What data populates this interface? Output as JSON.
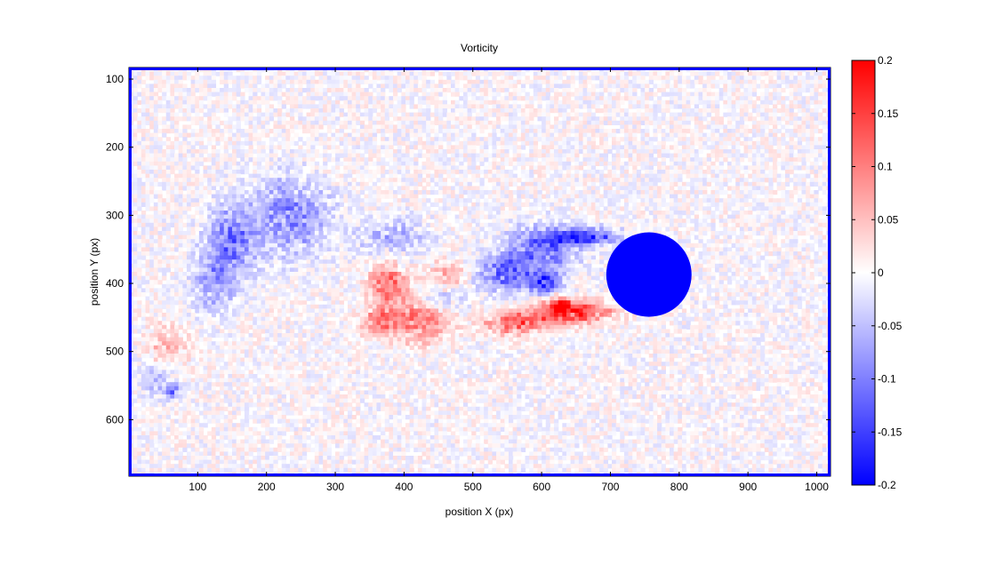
{
  "chart_data": {
    "type": "heatmap",
    "title": "Vorticity",
    "xlabel": "position X (px)",
    "ylabel": "position Y (px)",
    "xlim": [
      0,
      1020
    ],
    "ylim": [
      683,
      83
    ],
    "y_reversed": true,
    "x_ticks": [
      100,
      200,
      300,
      400,
      500,
      600,
      700,
      800,
      900,
      1000
    ],
    "y_ticks": [
      100,
      200,
      300,
      400,
      500,
      600
    ],
    "colorbar": {
      "range": [
        -0.2,
        0.2
      ],
      "ticks": [
        0.2,
        0.15,
        0.1,
        0.05,
        0,
        -0.05,
        -0.1,
        -0.15,
        -0.2
      ],
      "tick_labels": [
        "0.2",
        "0.15",
        "0.1",
        "0.05",
        "0",
        "-0.05",
        "-0.1",
        "-0.15",
        "-0.2"
      ],
      "low_color": "#0000ff",
      "mid_color": "#ffffff",
      "high_color": "#ff0000"
    },
    "field": {
      "grid_step": 6,
      "noise_level": 0.028,
      "features": [
        {
          "cx": 230,
          "cy": 300,
          "rx": 70,
          "ry": 70,
          "value": -0.09
        },
        {
          "cx": 145,
          "cy": 335,
          "rx": 45,
          "ry": 65,
          "value": -0.1
        },
        {
          "cx": 120,
          "cy": 400,
          "rx": 40,
          "ry": 50,
          "value": -0.07
        },
        {
          "cx": 380,
          "cy": 330,
          "rx": 60,
          "ry": 35,
          "value": -0.06
        },
        {
          "cx": 375,
          "cy": 400,
          "rx": 35,
          "ry": 45,
          "value": 0.1
        },
        {
          "cx": 420,
          "cy": 450,
          "rx": 50,
          "ry": 40,
          "value": 0.11
        },
        {
          "cx": 360,
          "cy": 455,
          "rx": 30,
          "ry": 25,
          "value": 0.09
        },
        {
          "cx": 460,
          "cy": 385,
          "rx": 35,
          "ry": 25,
          "value": 0.06
        },
        {
          "cx": 450,
          "cy": 420,
          "rx": 40,
          "ry": 30,
          "value": -0.05
        },
        {
          "cx": 545,
          "cy": 380,
          "rx": 50,
          "ry": 35,
          "value": -0.12
        },
        {
          "cx": 600,
          "cy": 345,
          "rx": 60,
          "ry": 40,
          "value": -0.11
        },
        {
          "cx": 660,
          "cy": 328,
          "rx": 60,
          "ry": 15,
          "value": -0.15
        },
        {
          "cx": 600,
          "cy": 395,
          "rx": 30,
          "ry": 20,
          "value": -0.14
        },
        {
          "cx": 560,
          "cy": 455,
          "rx": 55,
          "ry": 20,
          "value": 0.12
        },
        {
          "cx": 640,
          "cy": 440,
          "rx": 70,
          "ry": 20,
          "value": 0.15
        },
        {
          "cx": 625,
          "cy": 430,
          "rx": 20,
          "ry": 15,
          "value": 0.17
        },
        {
          "cx": 50,
          "cy": 490,
          "rx": 35,
          "ry": 40,
          "value": 0.06
        },
        {
          "cx": 40,
          "cy": 530,
          "rx": 30,
          "ry": 40,
          "value": -0.05
        },
        {
          "cx": 60,
          "cy": 555,
          "rx": 15,
          "ry": 12,
          "value": -0.09
        }
      ],
      "cylinder": {
        "cx": 756,
        "cy": 387,
        "r": 62,
        "value": -0.2
      }
    }
  }
}
